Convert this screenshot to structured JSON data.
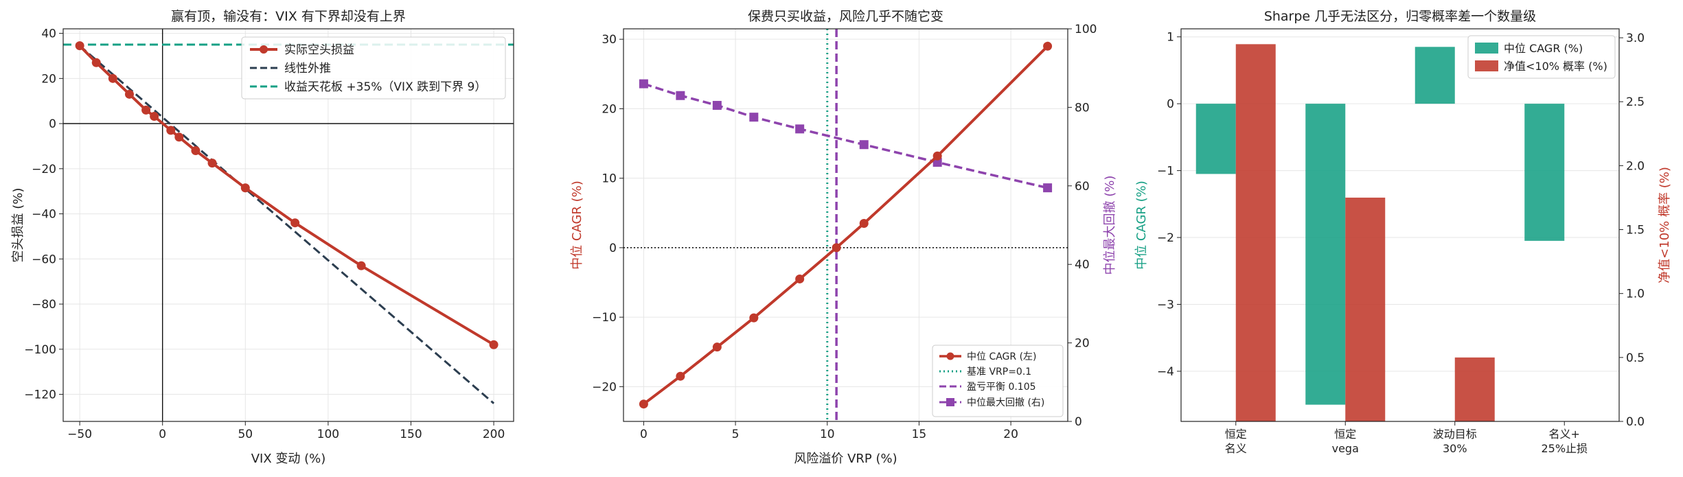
{
  "chart_data": [
    {
      "type": "line",
      "title": "赢有顶，输没有：VIX 有下界却没有上界",
      "xlabel": "VIX 变动 (%)",
      "ylabel": "空头损益 (%)",
      "xlim": [
        -60,
        212
      ],
      "ylim": [
        -132,
        42
      ],
      "xticks": [
        -50,
        0,
        50,
        100,
        150,
        200
      ],
      "yticks": [
        -120,
        -100,
        -80,
        -60,
        -40,
        -20,
        0,
        20,
        40
      ],
      "grid": true,
      "legend_position": "top-right",
      "series": [
        {
          "name": "实际空头损益",
          "color": "#c0392b",
          "style": "solid-marker-circle",
          "x": [
            -50,
            -40,
            -30,
            -20,
            -10,
            -5,
            5,
            10,
            20,
            30,
            50,
            80,
            120,
            200
          ],
          "y": [
            34.5,
            27,
            20,
            13,
            6,
            3.2,
            -3,
            -6,
            -12,
            -17.5,
            -28.5,
            -44,
            -63,
            -98
          ]
        },
        {
          "name": "线性外推",
          "color": "#2c3e50",
          "style": "dashed",
          "x": [
            -50,
            200
          ],
          "y": [
            34.5,
            -124
          ]
        },
        {
          "name": "收益天花板 +35%（VIX 跌到下界 9）",
          "color": "#16a085",
          "style": "dashed-horizontal",
          "y_value": 35
        }
      ],
      "reference_lines": {
        "x": 0,
        "y": 0
      }
    },
    {
      "type": "line",
      "title": "保费只买收益，风险几乎不随它变",
      "xlabel": "风险溢价 VRP (%)",
      "ylabel_left": "中位 CAGR (%)",
      "ylabel_right": "中位最大回撤 (%)",
      "xlim": [
        -1.1,
        23.1
      ],
      "ylim_left": [
        -25,
        31.5
      ],
      "ylim_right": [
        0,
        100
      ],
      "xticks": [
        0,
        5,
        10,
        15,
        20
      ],
      "yticks_left": [
        -20,
        -10,
        0,
        10,
        20,
        30
      ],
      "yticks_right": [
        0,
        20,
        40,
        60,
        80,
        100
      ],
      "grid": true,
      "legend_position": "lower-right",
      "series": [
        {
          "name": "中位 CAGR (左)",
          "axis": "left",
          "color": "#c0392b",
          "style": "solid-marker-circle",
          "x": [
            0,
            2,
            4,
            6,
            8.5,
            10.5,
            12,
            16,
            22
          ],
          "y": [
            -22.5,
            -18.5,
            -14.3,
            -10.1,
            -4.5,
            0,
            3.5,
            13.2,
            29
          ]
        },
        {
          "name": "基准 VRP=0.1",
          "color": "#16a085",
          "style": "dotted-vertical",
          "x_value": 10
        },
        {
          "name": "盈亏平衡 0.105",
          "color": "#8e44ad",
          "style": "dashed-vertical",
          "x_value": 10.5
        },
        {
          "name": "中位最大回撤 (右)",
          "axis": "right",
          "color": "#8e44ad",
          "style": "dashed-marker-square",
          "x": [
            0,
            2,
            4,
            6,
            8.5,
            12,
            16,
            22
          ],
          "y": [
            86,
            83,
            80.5,
            77.5,
            74.5,
            70.5,
            66,
            59.5
          ]
        }
      ],
      "reference_lines": {
        "y_left": 0
      }
    },
    {
      "type": "bar",
      "title": "Sharpe 几乎无法区分，归零概率差一个数量级",
      "categories": [
        "恒定\n名义",
        "恒定\nvega",
        "波动目标\n30%",
        "名义+\n25%止损"
      ],
      "ylabel_left": "中位 CAGR (%)",
      "ylabel_right": "净值<10% 概率 (%)",
      "ylim_left": [
        -4.75,
        1.12
      ],
      "ylim_right": [
        0,
        3.07
      ],
      "yticks_left": [
        -4,
        -3,
        -2,
        -1,
        0,
        1
      ],
      "yticks_right": [
        0.0,
        0.5,
        1.0,
        1.5,
        2.0,
        2.5,
        3.0
      ],
      "legend_position": "top-right",
      "series": [
        {
          "name": "中位 CAGR (%)",
          "axis": "left",
          "color": "#17a085",
          "values": [
            -1.05,
            -4.5,
            0.85,
            -2.05
          ]
        },
        {
          "name": "净值<10% 概率 (%)",
          "axis": "right",
          "color": "#c0392b",
          "values": [
            2.95,
            1.75,
            0.5,
            0
          ]
        }
      ]
    }
  ]
}
